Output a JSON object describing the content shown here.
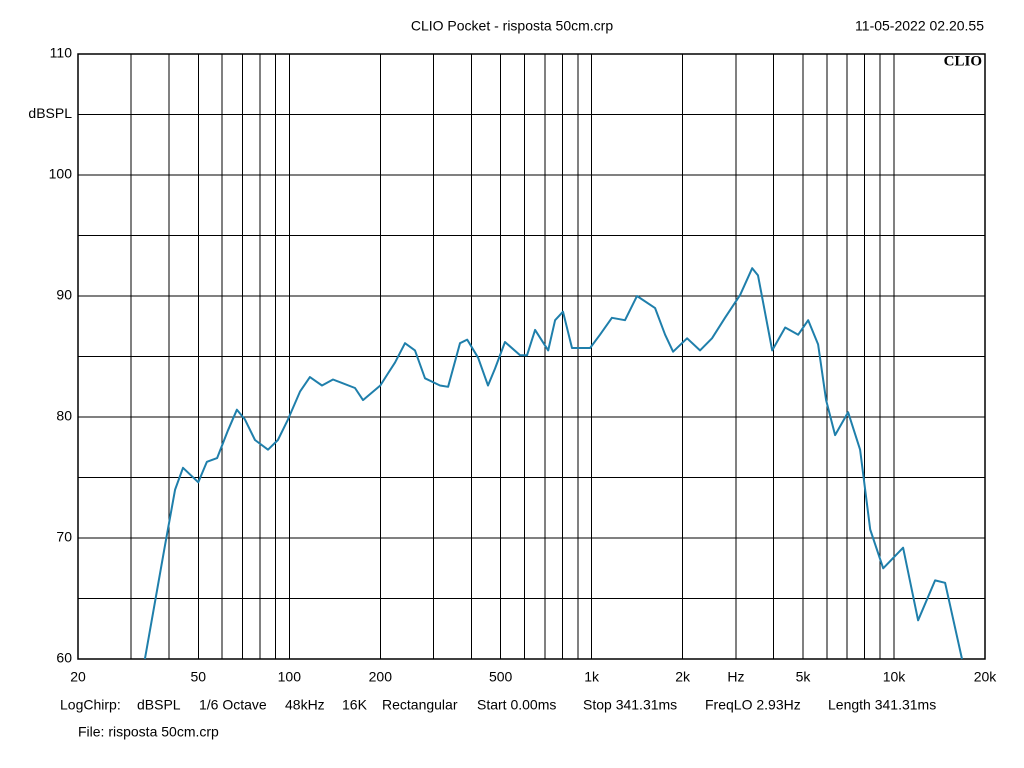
{
  "chart_data": {
    "type": "line",
    "title": "CLIO Pocket - risposta 50cm.crp",
    "date": "11-05-2022 02.20.55",
    "logo": "CLIO",
    "log_x": true,
    "grid": true,
    "x": [
      33.3,
      38.8,
      41.9,
      44.5,
      50,
      53.4,
      57.7,
      62.7,
      67.1,
      71.3,
      77,
      85,
      91.7,
      99,
      108.5,
      117,
      128.3,
      139.5,
      164.9,
      175.3,
      200,
      212,
      223.7,
      241.4,
      260.5,
      281,
      315,
      335,
      367,
      387.5,
      421,
      454,
      479,
      517,
      580,
      611,
      650,
      718,
      757,
      804,
      861,
      988,
      1066,
      1167,
      1289,
      1412,
      1621,
      1750,
      1859,
      2068,
      2283,
      2501,
      2760,
      3099,
      3397,
      3550,
      3954,
      4366,
      4822,
      5203,
      5612,
      5962,
      6385,
      7048,
      7728,
      8340,
      9210,
      10718,
      12020,
      13680,
      14760,
      16790
    ],
    "series": [
      {
        "color": "#1f7fab",
        "values": [
          60,
          69.4,
          74.0,
          75.8,
          74.6,
          76.3,
          76.6,
          78.9,
          80.6,
          79.8,
          78.1,
          77.3,
          78.1,
          79.8,
          82.1,
          83.3,
          82.6,
          83.1,
          82.4,
          81.4,
          82.6,
          83.6,
          84.5,
          86.1,
          85.5,
          83.2,
          82.6,
          82.5,
          86.1,
          86.4,
          84.9,
          82.6,
          84.0,
          86.2,
          85.1,
          85.1,
          87.2,
          85.5,
          88.0,
          88.7,
          85.7,
          85.7,
          86.8,
          88.2,
          88.0,
          90.0,
          89.0,
          86.8,
          85.4,
          86.5,
          85.5,
          86.5,
          88.2,
          90.1,
          92.3,
          91.7,
          85.5,
          87.4,
          86.8,
          88.0,
          86.0,
          81.4,
          78.5,
          80.4,
          77.3,
          70.7,
          67.5,
          69.2,
          63.2,
          66.5,
          66.3,
          60
        ]
      }
    ],
    "xlim": [
      20,
      20000
    ],
    "ylim": [
      60,
      110
    ],
    "xticks": [
      20,
      50,
      100,
      200,
      500,
      {
        "value": 1000,
        "label": "1k"
      },
      {
        "value": 2000,
        "label": "2k"
      },
      {
        "value": 3000,
        "label": "Hz"
      },
      {
        "value": 5000,
        "label": "5k"
      },
      {
        "value": 10000,
        "label": "10k"
      },
      {
        "value": 20000,
        "label": "20k"
      }
    ],
    "xminor_ticks": [
      30,
      40,
      60,
      70,
      80,
      90,
      300,
      400,
      600,
      700,
      800,
      900,
      4000,
      6000,
      7000,
      8000,
      9000
    ],
    "yticks": [
      60,
      70,
      80,
      90,
      100,
      {
        "value": 105,
        "label": "dBSPL"
      },
      110
    ],
    "yminor_ticks": [
      65,
      75,
      85,
      95
    ],
    "footer": [
      "LogChirp:",
      "dBSPL",
      "1/6 Octave",
      "48kHz",
      "16K",
      "Rectangular",
      "Start 0.00ms",
      "Stop 341.31ms",
      "FreqLO 2.93Hz",
      "Length 341.31ms"
    ],
    "file": "File: risposta 50cm.crp"
  }
}
